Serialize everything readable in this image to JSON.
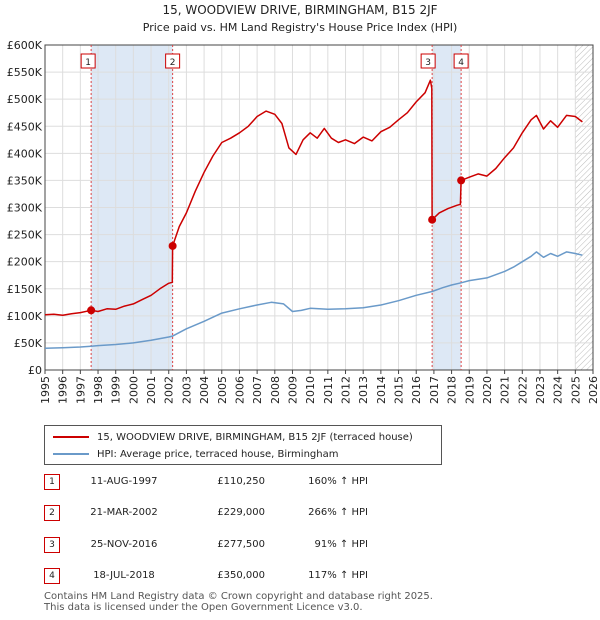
{
  "chart_data": {
    "type": "line",
    "title": "15, WOODVIEW DRIVE, BIRMINGHAM, B15 2JF",
    "subtitle": "Price paid vs. HM Land Registry's House Price Index (HPI)",
    "xlim": [
      1995,
      2026
    ],
    "ylim": [
      0,
      600000
    ],
    "x_ticks": [
      "1995",
      "1996",
      "1997",
      "1998",
      "1999",
      "2000",
      "2001",
      "2002",
      "2003",
      "2004",
      "2005",
      "2006",
      "2007",
      "2008",
      "2009",
      "2010",
      "2011",
      "2012",
      "2013",
      "2014",
      "2015",
      "2016",
      "2017",
      "2018",
      "2019",
      "2020",
      "2021",
      "2022",
      "2023",
      "2024",
      "2025",
      "2026"
    ],
    "y_ticks": [
      {
        "value": 0,
        "label": "£0"
      },
      {
        "value": 50000,
        "label": "£50K"
      },
      {
        "value": 100000,
        "label": "£100K"
      },
      {
        "value": 150000,
        "label": "£150K"
      },
      {
        "value": 200000,
        "label": "£200K"
      },
      {
        "value": 250000,
        "label": "£250K"
      },
      {
        "value": 300000,
        "label": "£300K"
      },
      {
        "value": 350000,
        "label": "£350K"
      },
      {
        "value": 400000,
        "label": "£400K"
      },
      {
        "value": 450000,
        "label": "£450K"
      },
      {
        "value": 500000,
        "label": "£500K"
      },
      {
        "value": 550000,
        "label": "£550K"
      },
      {
        "value": 600000,
        "label": "£600K"
      }
    ],
    "shaded_periods": [
      {
        "from": 1997.61,
        "to": 2002.22
      },
      {
        "from": 2016.9,
        "to": 2018.54
      }
    ],
    "future_hatch_from": 2025.0,
    "colors": {
      "property": "#cc0000",
      "hpi": "#6a9ac9",
      "marker_line": "#dd4444",
      "shade": "#dde8f5"
    },
    "series": [
      {
        "name": "15, WOODVIEW DRIVE, BIRMINGHAM, B15 2JF (terraced house)",
        "color": "#cc0000",
        "points": [
          [
            1995.0,
            102000
          ],
          [
            1995.5,
            103000
          ],
          [
            1996.0,
            101000
          ],
          [
            1996.5,
            104000
          ],
          [
            1997.0,
            106000
          ],
          [
            1997.61,
            110250
          ],
          [
            1998.0,
            108000
          ],
          [
            1998.5,
            113000
          ],
          [
            1999.0,
            112000
          ],
          [
            1999.5,
            118000
          ],
          [
            2000.0,
            122000
          ],
          [
            2000.5,
            130000
          ],
          [
            2001.0,
            138000
          ],
          [
            2001.5,
            150000
          ],
          [
            2002.0,
            160000
          ],
          [
            2002.2,
            162000
          ],
          [
            2002.22,
            229000
          ],
          [
            2002.6,
            265000
          ],
          [
            2003.0,
            290000
          ],
          [
            2003.5,
            330000
          ],
          [
            2004.0,
            365000
          ],
          [
            2004.5,
            395000
          ],
          [
            2005.0,
            420000
          ],
          [
            2005.5,
            428000
          ],
          [
            2006.0,
            438000
          ],
          [
            2006.5,
            450000
          ],
          [
            2007.0,
            468000
          ],
          [
            2007.5,
            478000
          ],
          [
            2008.0,
            472000
          ],
          [
            2008.4,
            455000
          ],
          [
            2008.8,
            410000
          ],
          [
            2009.2,
            398000
          ],
          [
            2009.6,
            425000
          ],
          [
            2010.0,
            438000
          ],
          [
            2010.4,
            428000
          ],
          [
            2010.8,
            446000
          ],
          [
            2011.2,
            428000
          ],
          [
            2011.6,
            420000
          ],
          [
            2012.0,
            425000
          ],
          [
            2012.5,
            418000
          ],
          [
            2013.0,
            430000
          ],
          [
            2013.5,
            423000
          ],
          [
            2014.0,
            440000
          ],
          [
            2014.5,
            448000
          ],
          [
            2015.0,
            462000
          ],
          [
            2015.5,
            475000
          ],
          [
            2016.0,
            495000
          ],
          [
            2016.5,
            512000
          ],
          [
            2016.8,
            535000
          ],
          [
            2016.88,
            520000
          ],
          [
            2016.9,
            277500
          ],
          [
            2017.3,
            290000
          ],
          [
            2017.8,
            298000
          ],
          [
            2018.3,
            304000
          ],
          [
            2018.5,
            306000
          ],
          [
            2018.54,
            350000
          ],
          [
            2019.0,
            356000
          ],
          [
            2019.5,
            362000
          ],
          [
            2020.0,
            358000
          ],
          [
            2020.5,
            372000
          ],
          [
            2021.0,
            392000
          ],
          [
            2021.5,
            410000
          ],
          [
            2022.0,
            438000
          ],
          [
            2022.5,
            462000
          ],
          [
            2022.8,
            470000
          ],
          [
            2023.2,
            445000
          ],
          [
            2023.6,
            460000
          ],
          [
            2024.0,
            448000
          ],
          [
            2024.5,
            470000
          ],
          [
            2025.0,
            468000
          ],
          [
            2025.4,
            458000
          ]
        ]
      },
      {
        "name": "HPI: Average price, terraced house, Birmingham",
        "color": "#6a9ac9",
        "points": [
          [
            1995.0,
            40000
          ],
          [
            1996.0,
            41000
          ],
          [
            1997.0,
            42500
          ],
          [
            1997.61,
            44000
          ],
          [
            1998.0,
            45000
          ],
          [
            1999.0,
            47000
          ],
          [
            2000.0,
            50000
          ],
          [
            2001.0,
            55000
          ],
          [
            2002.0,
            61000
          ],
          [
            2002.22,
            62500
          ],
          [
            2003.0,
            76000
          ],
          [
            2004.0,
            90000
          ],
          [
            2005.0,
            105000
          ],
          [
            2006.0,
            113000
          ],
          [
            2007.0,
            120000
          ],
          [
            2007.8,
            125000
          ],
          [
            2008.5,
            122000
          ],
          [
            2009.0,
            108000
          ],
          [
            2009.5,
            110000
          ],
          [
            2010.0,
            114000
          ],
          [
            2011.0,
            112000
          ],
          [
            2012.0,
            113000
          ],
          [
            2013.0,
            115000
          ],
          [
            2014.0,
            120000
          ],
          [
            2015.0,
            128000
          ],
          [
            2016.0,
            138000
          ],
          [
            2016.9,
            145000
          ],
          [
            2017.5,
            152000
          ],
          [
            2018.0,
            157000
          ],
          [
            2018.54,
            161000
          ],
          [
            2019.0,
            165000
          ],
          [
            2020.0,
            170000
          ],
          [
            2021.0,
            182000
          ],
          [
            2021.5,
            190000
          ],
          [
            2022.0,
            200000
          ],
          [
            2022.5,
            210000
          ],
          [
            2022.8,
            218000
          ],
          [
            2023.2,
            208000
          ],
          [
            2023.6,
            215000
          ],
          [
            2024.0,
            210000
          ],
          [
            2024.5,
            218000
          ],
          [
            2025.0,
            215000
          ],
          [
            2025.4,
            212000
          ]
        ]
      }
    ],
    "sales": [
      {
        "id": "1",
        "x": 1997.61,
        "value": 110250
      },
      {
        "id": "2",
        "x": 2002.22,
        "value": 229000
      },
      {
        "id": "3",
        "x": 2016.9,
        "value": 277500
      },
      {
        "id": "4",
        "x": 2018.54,
        "value": 350000
      }
    ]
  },
  "legend": {
    "property_label": "15, WOODVIEW DRIVE, BIRMINGHAM, B15 2JF (terraced house)",
    "hpi_label": "HPI: Average price, terraced house, Birmingham"
  },
  "table": [
    {
      "num": "1",
      "date": "11-AUG-1997",
      "price": "£110,250",
      "hpi": "160% ↑ HPI"
    },
    {
      "num": "2",
      "date": "21-MAR-2002",
      "price": "£229,000",
      "hpi": "266% ↑ HPI"
    },
    {
      "num": "3",
      "date": "25-NOV-2016",
      "price": "£277,500",
      "hpi": "91% ↑ HPI"
    },
    {
      "num": "4",
      "date": "18-JUL-2018",
      "price": "£350,000",
      "hpi": "117% ↑ HPI"
    }
  ],
  "footer": {
    "line1": "Contains HM Land Registry data © Crown copyright and database right 2025.",
    "line2": "This data is licensed under the Open Government Licence v3.0."
  }
}
